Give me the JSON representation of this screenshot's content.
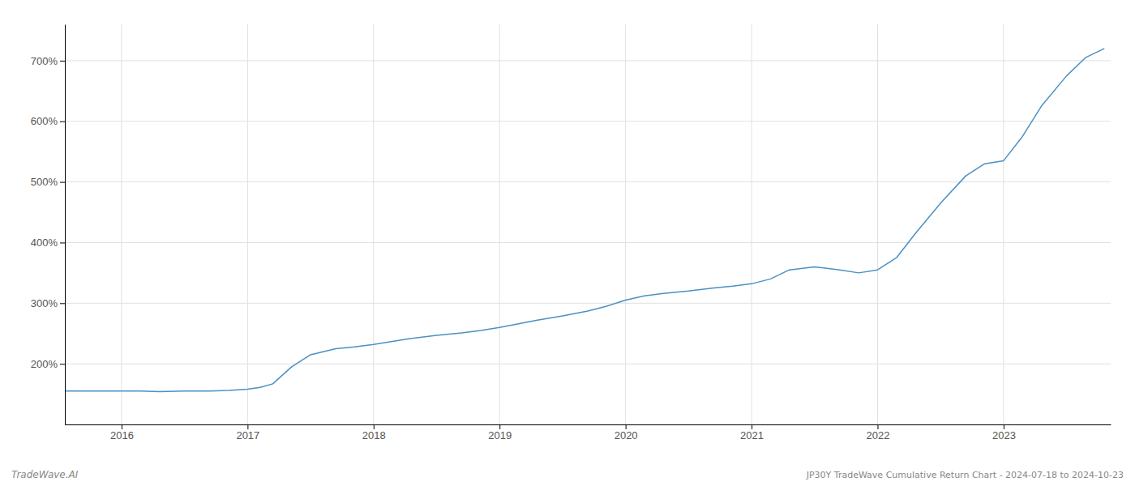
{
  "chart_data": {
    "type": "line",
    "title": "JP30Y TradeWave Cumulative Return Chart - 2024-07-18 to 2024-10-23",
    "annotations": [
      "TradeWave.AI"
    ],
    "x": [
      2015.55,
      2016.0,
      2016.15,
      2016.3,
      2016.5,
      2016.7,
      2016.85,
      2017.0,
      2017.1,
      2017.2,
      2017.35,
      2017.5,
      2017.7,
      2017.85,
      2018.0,
      2018.15,
      2018.3,
      2018.5,
      2018.7,
      2018.85,
      2019.0,
      2019.15,
      2019.3,
      2019.5,
      2019.7,
      2019.85,
      2020.0,
      2020.15,
      2020.3,
      2020.5,
      2020.7,
      2020.85,
      2021.0,
      2021.15,
      2021.3,
      2021.5,
      2021.7,
      2021.85,
      2022.0,
      2022.15,
      2022.3,
      2022.5,
      2022.7,
      2022.85,
      2023.0,
      2023.15,
      2023.3,
      2023.5,
      2023.65,
      2023.8
    ],
    "values": [
      155,
      155,
      155,
      154,
      155,
      155,
      156,
      158,
      161,
      167,
      195,
      215,
      225,
      228,
      232,
      237,
      242,
      247,
      251,
      255,
      260,
      266,
      272,
      279,
      287,
      295,
      305,
      312,
      316,
      320,
      325,
      328,
      332,
      340,
      355,
      360,
      355,
      350,
      355,
      375,
      415,
      465,
      510,
      530,
      535,
      575,
      625,
      675,
      705,
      720
    ],
    "color": "#4a90c4",
    "xlim": [
      2015.55,
      2023.85
    ],
    "xticks": [
      2016,
      2017,
      2018,
      2019,
      2020,
      2021,
      2022,
      2023
    ],
    "ylim": [
      100,
      760
    ],
    "yticks": [
      {
        "value": 200,
        "label": "200%"
      },
      {
        "value": 300,
        "label": "300%"
      },
      {
        "value": 400,
        "label": "400%"
      },
      {
        "value": 500,
        "label": "500%"
      },
      {
        "value": 600,
        "label": "600%"
      },
      {
        "value": 700,
        "label": "700%"
      }
    ],
    "grid": true
  }
}
